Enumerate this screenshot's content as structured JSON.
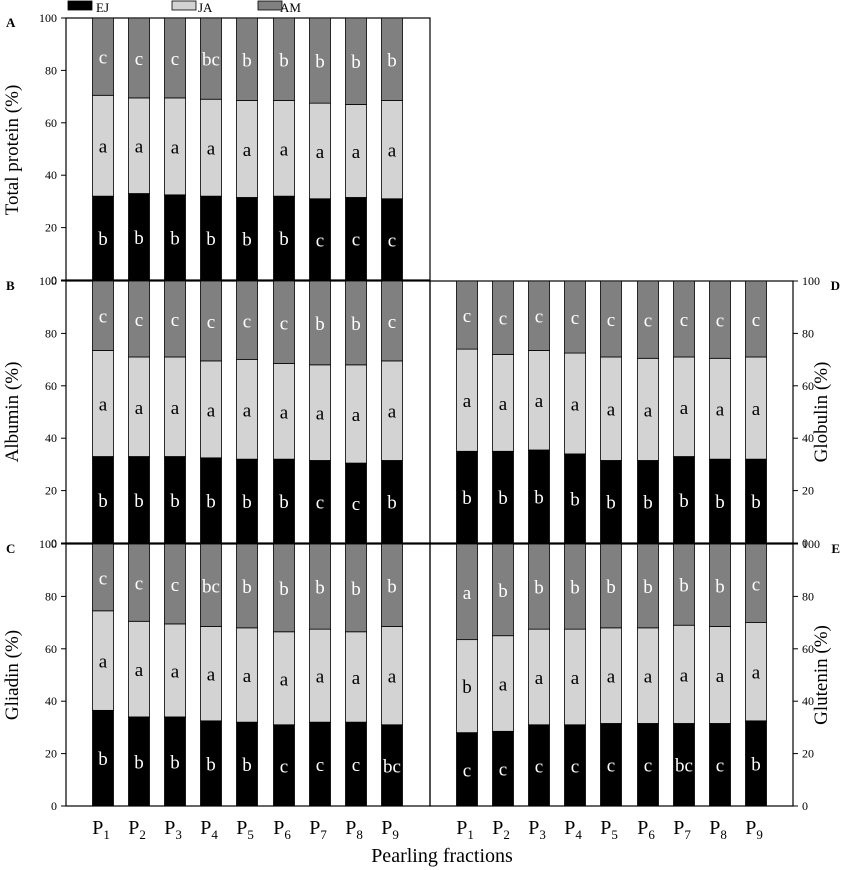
{
  "legend": [
    {
      "label": "EJ",
      "color": "#000000"
    },
    {
      "label": "JA",
      "color": "#d3d3d3"
    },
    {
      "label": "AM",
      "color": "#808080"
    }
  ],
  "xlabel": "Pearling fractions",
  "categories_main": [
    "P",
    "P",
    "P",
    "P",
    "P",
    "P",
    "P",
    "P",
    "P"
  ],
  "categories_sub": [
    "1",
    "2",
    "3",
    "4",
    "5",
    "6",
    "7",
    "8",
    "9"
  ],
  "y_ticks": [
    "0",
    "20",
    "40",
    "60",
    "80",
    "100"
  ],
  "chart_data": [
    {
      "type": "bar",
      "stacked": true,
      "panel": "A",
      "ylabel": "Total protein (%)",
      "ylim": [
        0,
        100
      ],
      "categories": [
        "P1",
        "P2",
        "P3",
        "P4",
        "P5",
        "P6",
        "P7",
        "P8",
        "P9"
      ],
      "series": [
        {
          "name": "EJ",
          "values": [
            32,
            33,
            32.5,
            32,
            31.5,
            32,
            31,
            31.5,
            31
          ],
          "letters": [
            "b",
            "b",
            "b",
            "b",
            "b",
            "b",
            "c",
            "c",
            "c"
          ]
        },
        {
          "name": "JA",
          "values": [
            38.5,
            36.5,
            37,
            37,
            37,
            36.5,
            36.5,
            35.5,
            37.5
          ],
          "letters": [
            "a",
            "a",
            "a",
            "a",
            "a",
            "a",
            "a",
            "a",
            "a"
          ]
        },
        {
          "name": "AM",
          "values": [
            29.5,
            30.5,
            30.5,
            31,
            31.5,
            31.5,
            32.5,
            33,
            31.5
          ],
          "letters": [
            "c",
            "c",
            "c",
            "bc",
            "b",
            "b",
            "b",
            "b",
            "b"
          ]
        }
      ]
    },
    {
      "type": "bar",
      "stacked": true,
      "panel": "B",
      "ylabel": "Albumin (%)",
      "ylim": [
        0,
        100
      ],
      "categories": [
        "P1",
        "P2",
        "P3",
        "P4",
        "P5",
        "P6",
        "P7",
        "P8",
        "P9"
      ],
      "series": [
        {
          "name": "EJ",
          "values": [
            33,
            33,
            33,
            32.5,
            32,
            32,
            31.5,
            30.5,
            31.5
          ],
          "letters": [
            "b",
            "b",
            "b",
            "b",
            "b",
            "b",
            "c",
            "c",
            "b"
          ]
        },
        {
          "name": "JA",
          "values": [
            40.5,
            38,
            38,
            37,
            38,
            36.5,
            36.5,
            37.5,
            38
          ],
          "letters": [
            "a",
            "a",
            "a",
            "a",
            "a",
            "a",
            "a",
            "a",
            "a"
          ]
        },
        {
          "name": "AM",
          "values": [
            26.5,
            29,
            29,
            30.5,
            30,
            31.5,
            32,
            32,
            30.5
          ],
          "letters": [
            "c",
            "c",
            "c",
            "c",
            "c",
            "c",
            "b",
            "b",
            "c"
          ]
        }
      ]
    },
    {
      "type": "bar",
      "stacked": true,
      "panel": "C",
      "ylabel": "Gliadin (%)",
      "ylim": [
        0,
        100
      ],
      "categories": [
        "P1",
        "P2",
        "P3",
        "P4",
        "P5",
        "P6",
        "P7",
        "P8",
        "P9"
      ],
      "series": [
        {
          "name": "EJ",
          "values": [
            36.5,
            34,
            34,
            32.5,
            32,
            31,
            32,
            32,
            31
          ],
          "letters": [
            "b",
            "b",
            "b",
            "b",
            "b",
            "c",
            "c",
            "c",
            "bc"
          ]
        },
        {
          "name": "JA",
          "values": [
            38,
            36.5,
            35.5,
            36,
            36,
            35.5,
            35.5,
            34.5,
            37.5
          ],
          "letters": [
            "a",
            "a",
            "a",
            "a",
            "a",
            "a",
            "a",
            "a",
            "a"
          ]
        },
        {
          "name": "AM",
          "values": [
            25.5,
            29.5,
            30.5,
            31.5,
            32,
            33.5,
            32.5,
            33.5,
            31.5
          ],
          "letters": [
            "c",
            "c",
            "c",
            "bc",
            "b",
            "b",
            "b",
            "b",
            "b"
          ]
        }
      ]
    },
    {
      "type": "bar",
      "stacked": true,
      "panel": "D",
      "ylabel": "Globulin (%)",
      "ylim": [
        0,
        100
      ],
      "categories": [
        "P1",
        "P2",
        "P3",
        "P4",
        "P5",
        "P6",
        "P7",
        "P8",
        "P9"
      ],
      "series": [
        {
          "name": "EJ",
          "values": [
            35,
            35,
            35.5,
            34,
            31.5,
            31.5,
            33,
            32,
            32
          ],
          "letters": [
            "b",
            "b",
            "b",
            "b",
            "b",
            "b",
            "b",
            "b",
            "b"
          ]
        },
        {
          "name": "JA",
          "values": [
            39,
            37,
            38,
            38.5,
            39.5,
            39,
            38,
            38.5,
            39
          ],
          "letters": [
            "a",
            "a",
            "a",
            "a",
            "a",
            "a",
            "a",
            "a",
            "a"
          ]
        },
        {
          "name": "AM",
          "values": [
            26,
            28,
            26.5,
            27.5,
            29,
            29.5,
            29,
            29.5,
            29
          ],
          "letters": [
            "c",
            "c",
            "c",
            "c",
            "c",
            "c",
            "c",
            "c",
            "c"
          ]
        }
      ]
    },
    {
      "type": "bar",
      "stacked": true,
      "panel": "E",
      "ylabel": "Glutenin (%)",
      "ylim": [
        0,
        100
      ],
      "categories": [
        "P1",
        "P2",
        "P3",
        "P4",
        "P5",
        "P6",
        "P7",
        "P8",
        "P9"
      ],
      "series": [
        {
          "name": "EJ",
          "values": [
            28,
            28.5,
            31,
            31,
            31.5,
            31.5,
            31.5,
            31.5,
            32.5
          ],
          "letters": [
            "c",
            "c",
            "c",
            "c",
            "c",
            "c",
            "bc",
            "c",
            "b"
          ]
        },
        {
          "name": "JA",
          "values": [
            35.5,
            36.5,
            36.5,
            36.5,
            36.5,
            36.5,
            37.5,
            37,
            37.5
          ],
          "letters": [
            "b",
            "a",
            "a",
            "a",
            "a",
            "a",
            "a",
            "a",
            "a"
          ]
        },
        {
          "name": "AM",
          "values": [
            36.5,
            35,
            32.5,
            32.5,
            32,
            32,
            31,
            31.5,
            30
          ],
          "letters": [
            "a",
            "b",
            "b",
            "b",
            "b",
            "b",
            "b",
            "b",
            "c"
          ]
        }
      ]
    }
  ]
}
